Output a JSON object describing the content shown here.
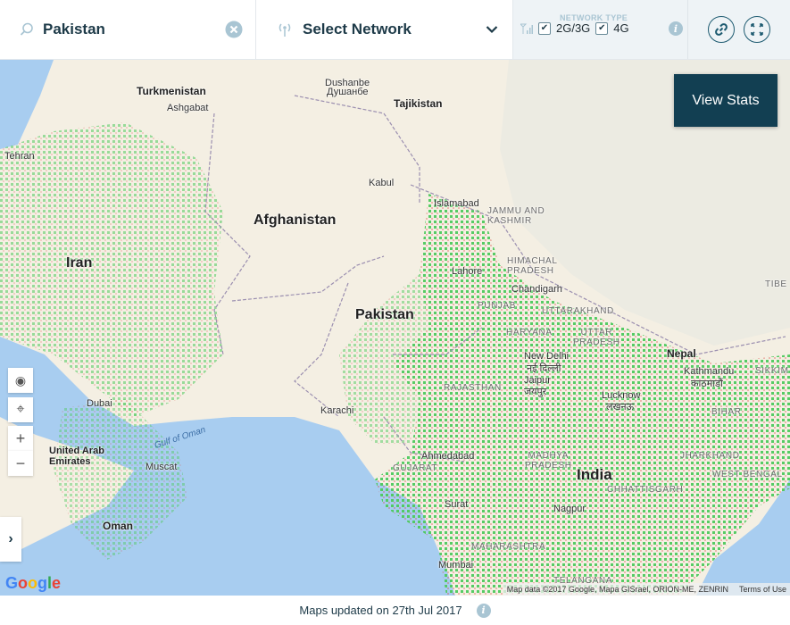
{
  "search": {
    "value": "Pakistan",
    "icon": "search-icon",
    "clear_icon": "clear-icon"
  },
  "network": {
    "label": "Select Network",
    "icon": "antenna-icon"
  },
  "network_type": {
    "title": "NETWORK TYPE",
    "options": [
      {
        "label": "2G/3G",
        "checked": true
      },
      {
        "label": "4G",
        "checked": true
      }
    ]
  },
  "actions": {
    "link_icon": "link-icon",
    "fullscreen_icon": "fullscreen-icon"
  },
  "map": {
    "view_stats": "View Stats",
    "countries": [
      "Turkmenistan",
      "Tajikistan",
      "Afghanistan",
      "Iran",
      "Pakistan",
      "India",
      "Oman",
      "Nepal",
      "United Arab\nEmirates",
      "TIBE"
    ],
    "cities": [
      "Ashgabat",
      "Dushanbe",
      "Душанбе",
      "Tehran",
      "Kabul",
      "Islamabad",
      "Lahore",
      "Chandigarh",
      "New Delhi",
      "नई दिल्ली",
      "Jaipur",
      "जयपुर",
      "Lucknow",
      "लखनऊ",
      "Kathmandu",
      "काठमाडौं",
      "Dubai",
      "Karachi",
      "Muscat",
      "Ahmedabad",
      "Surat",
      "Mumbai",
      "Nagpur"
    ],
    "regions": [
      "JAMMU AND\nKASHMIR",
      "HIMACHAL\nPRADESH",
      "PUNJAB",
      "UTTARAKHAND",
      "HARYANA",
      "UTTAR\nPRADESH",
      "RAJASTHAN",
      "BIHAR",
      "SIKKIM",
      "JHARKHAND",
      "MADHYA\nPRADESH",
      "GUJARAT",
      "WEST BENGAL",
      "CHHATTISGARH",
      "MAHARASHTRA",
      "TELANGANA"
    ],
    "seas": [
      "Gulf of Oman"
    ],
    "attribution": "Map data ©2017 Google, Mapa GISrael, ORION-ME, ZENRIN",
    "terms": "Terms of Use",
    "google_logo": "Google",
    "colors": {
      "coverage": "#4fc95d",
      "weak": "#d9443c",
      "land": "#f4efe3",
      "water": "#a8cdf0"
    }
  },
  "footer": {
    "text": "Maps updated on 27th Jul 2017"
  }
}
